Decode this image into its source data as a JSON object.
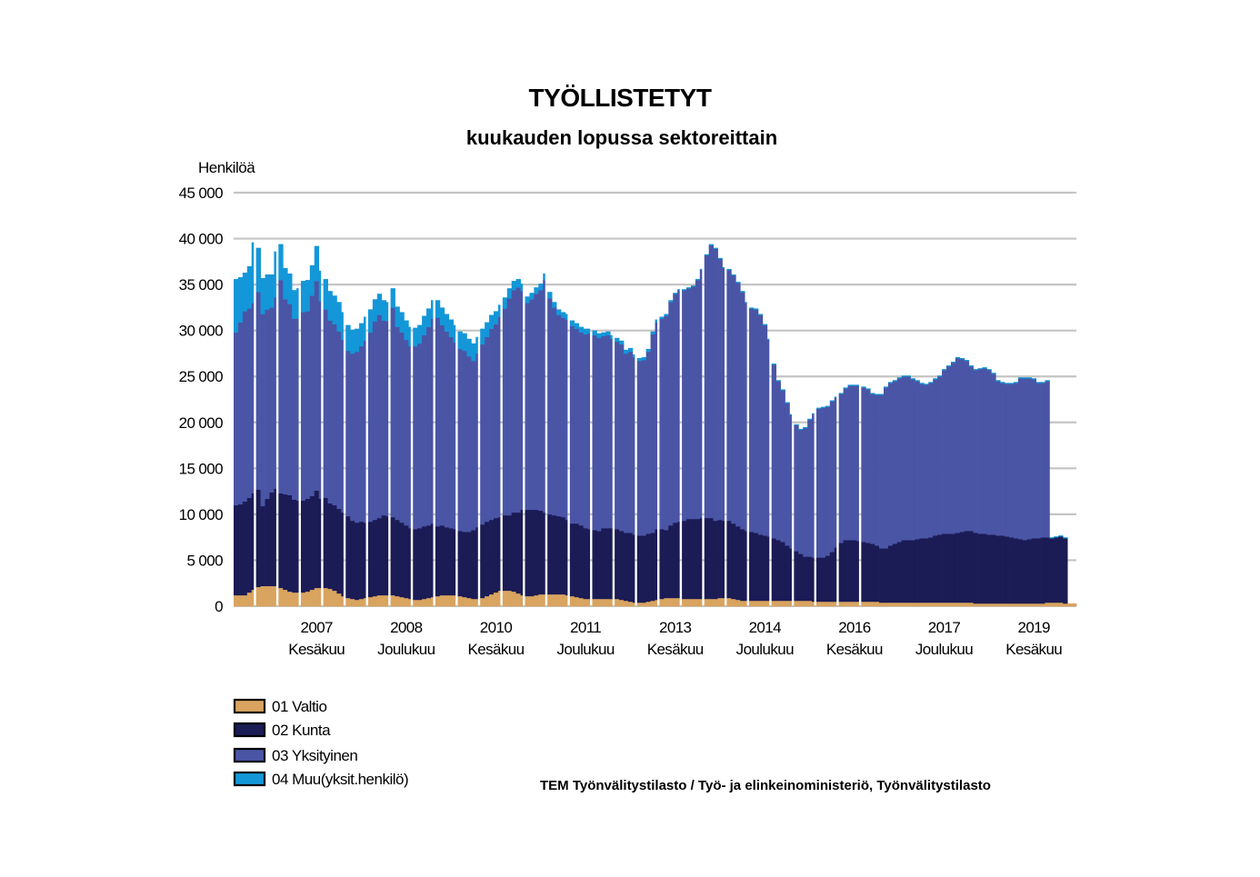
{
  "chart_data": {
    "type": "bar",
    "stacked": true,
    "title": "TYÖLLISTETYT",
    "subtitle": "kuukauden lopussa sektoreittain",
    "ylabel": "Henkilöä",
    "ylim": [
      0,
      45000
    ],
    "y_ticks": [
      "0",
      "5 000",
      "10 000",
      "15 000",
      "20 000",
      "25 000",
      "30 000",
      "35 000",
      "40 000",
      "45 000"
    ],
    "y_tick_values": [
      0,
      5000,
      10000,
      15000,
      20000,
      25000,
      30000,
      35000,
      40000,
      45000
    ],
    "grid": true,
    "x_ticks": [
      {
        "year": "2007",
        "month": "Kesäkuu",
        "index": 18
      },
      {
        "year": "2008",
        "month": "Joulukuu",
        "index": 38
      },
      {
        "year": "2010",
        "month": "Kesäkuu",
        "index": 58
      },
      {
        "year": "2011",
        "month": "Joulukuu",
        "index": 78
      },
      {
        "year": "2013",
        "month": "Kesäkuu",
        "index": 98
      },
      {
        "year": "2014",
        "month": "Joulukuu",
        "index": 118
      },
      {
        "year": "2016",
        "month": "Kesäkuu",
        "index": 138
      },
      {
        "year": "2017",
        "month": "Joulukuu",
        "index": 158
      },
      {
        "year": "2019",
        "month": "Kesäkuu",
        "index": 178
      }
    ],
    "gap_after_indices": [
      4,
      9,
      14,
      19,
      24,
      29,
      34,
      39,
      44,
      49,
      54,
      59,
      64,
      69,
      74,
      79,
      84,
      89,
      94,
      99,
      104,
      109,
      114,
      119,
      124,
      129,
      134,
      139
    ],
    "legend_position": "bottom-left",
    "series": [
      {
        "name": "01 Valtio",
        "color": "#d9a45f",
        "values": [
          1200,
          1200,
          1200,
          1500,
          1800,
          2100,
          2200,
          2200,
          2200,
          2200,
          2000,
          1800,
          1600,
          1500,
          1500,
          1500,
          1600,
          1800,
          2000,
          2000,
          2000,
          1900,
          1700,
          1400,
          1100,
          900,
          800,
          700,
          800,
          900,
          1000,
          1100,
          1200,
          1200,
          1200,
          1200,
          1100,
          1000,
          900,
          800,
          700,
          700,
          800,
          900,
          1000,
          1100,
          1200,
          1200,
          1200,
          1200,
          1100,
          1000,
          900,
          800,
          800,
          900,
          1100,
          1300,
          1500,
          1700,
          1700,
          1700,
          1600,
          1400,
          1200,
          1100,
          1100,
          1200,
          1300,
          1300,
          1300,
          1300,
          1300,
          1300,
          1200,
          1100,
          1000,
          900,
          800,
          800,
          800,
          800,
          800,
          800,
          800,
          800,
          700,
          600,
          500,
          400,
          400,
          400,
          500,
          600,
          700,
          800,
          900,
          900,
          900,
          900,
          800,
          800,
          800,
          800,
          800,
          800,
          800,
          800,
          900,
          900,
          900,
          800,
          700,
          600,
          600,
          600,
          600,
          600,
          600,
          600,
          600,
          600,
          600,
          600,
          600,
          600,
          600,
          600,
          600,
          500,
          500,
          500,
          500,
          500,
          500,
          500,
          500,
          500,
          500,
          500,
          500,
          500,
          500,
          500,
          400,
          400,
          400,
          400,
          400,
          400,
          400,
          400,
          400,
          400,
          400,
          400,
          400,
          400,
          400,
          400,
          400,
          400,
          400,
          400,
          400,
          300,
          300,
          300,
          300,
          300,
          300,
          300,
          300,
          300,
          300,
          300,
          300,
          300,
          300,
          300,
          300,
          400,
          400,
          400,
          400,
          300,
          300,
          300
        ]
      },
      {
        "name": "02 Kunta",
        "color": "#1b1b55",
        "values": [
          9800,
          9900,
          10200,
          10300,
          10500,
          10600,
          8700,
          9500,
          10200,
          10600,
          10300,
          10400,
          10500,
          10100,
          10000,
          10000,
          10100,
          10200,
          10600,
          9700,
          9800,
          9300,
          9300,
          9200,
          9100,
          8900,
          8500,
          8400,
          8400,
          8200,
          8200,
          8300,
          8400,
          8700,
          8600,
          8500,
          8300,
          8100,
          7900,
          7700,
          7700,
          7800,
          7900,
          7900,
          8000,
          7600,
          7600,
          7400,
          7300,
          7200,
          7100,
          7100,
          7200,
          7500,
          7800,
          8000,
          8100,
          8100,
          8100,
          8000,
          8200,
          8200,
          8600,
          8800,
          9300,
          9400,
          9400,
          9300,
          9100,
          8900,
          8700,
          8600,
          8500,
          8400,
          8200,
          7900,
          8000,
          7900,
          7700,
          7600,
          7500,
          7400,
          7700,
          7700,
          7700,
          7600,
          7500,
          7400,
          7500,
          7400,
          7300,
          7300,
          7400,
          7400,
          7700,
          7600,
          7400,
          7900,
          8200,
          8300,
          8500,
          8700,
          8700,
          8700,
          8800,
          8800,
          8800,
          8500,
          8500,
          8400,
          8400,
          8200,
          8000,
          7800,
          7600,
          7500,
          7400,
          7200,
          7100,
          7000,
          6800,
          6600,
          6400,
          6000,
          5700,
          5400,
          5100,
          4800,
          4800,
          4800,
          4800,
          4800,
          5000,
          5400,
          5900,
          6400,
          6700,
          6700,
          6700,
          6600,
          6500,
          6400,
          6300,
          6100,
          5900,
          5900,
          6200,
          6400,
          6600,
          6800,
          6800,
          6800,
          6900,
          7000,
          7000,
          7100,
          7300,
          7400,
          7500,
          7500,
          7500,
          7600,
          7700,
          7800,
          7800,
          7700,
          7600,
          7600,
          7500,
          7500,
          7400,
          7400,
          7300,
          7200,
          7100,
          7000,
          6900,
          7000,
          7100,
          7100,
          7200,
          7100,
          7000,
          7100,
          7200,
          7100
        ]
      },
      {
        "name": "03 Yksityinen",
        "color": "#4a55a6",
        "values": [
          18800,
          19800,
          20700,
          20600,
          20700,
          21500,
          20900,
          20600,
          20100,
          20800,
          23200,
          21200,
          20800,
          19700,
          19800,
          20500,
          20400,
          21800,
          22800,
          21500,
          20500,
          19900,
          19700,
          19300,
          18800,
          18000,
          18200,
          18600,
          19100,
          19800,
          20600,
          21600,
          22100,
          21200,
          21200,
          22800,
          21000,
          20700,
          20200,
          19800,
          19900,
          20100,
          20800,
          21600,
          22300,
          22700,
          21800,
          21300,
          20800,
          20300,
          19800,
          19700,
          19100,
          18400,
          18900,
          19600,
          20100,
          20800,
          21100,
          21800,
          22500,
          23600,
          24200,
          24500,
          23800,
          22500,
          22900,
          23500,
          24000,
          25300,
          23500,
          22600,
          21900,
          21700,
          21800,
          21500,
          21200,
          21000,
          21100,
          21300,
          21200,
          21000,
          20900,
          21000,
          20600,
          20400,
          20300,
          19500,
          19700,
          19300,
          19000,
          19100,
          19800,
          21600,
          22500,
          22900,
          23300,
          24300,
          24900,
          25200,
          25100,
          25100,
          25300,
          26000,
          27000,
          28600,
          29700,
          29600,
          28400,
          27500,
          27300,
          27000,
          26500,
          25800,
          24800,
          24300,
          24300,
          23900,
          22900,
          21400,
          18900,
          17300,
          16500,
          15500,
          14500,
          13700,
          13500,
          14000,
          14900,
          15600,
          16200,
          16300,
          16200,
          16400,
          16300,
          16200,
          16500,
          16800,
          16800,
          16900,
          16800,
          16700,
          16300,
          16400,
          16700,
          17500,
          17700,
          17700,
          17800,
          17800,
          17800,
          17500,
          17200,
          16800,
          16700,
          16800,
          17000,
          17200,
          17800,
          18200,
          18600,
          19000,
          18800,
          18500,
          17900,
          17700,
          17900,
          18000,
          17900,
          17500,
          16800,
          16600,
          16600,
          16700,
          16900,
          17500,
          17600,
          17500,
          17300,
          16900,
          16800,
          17000
        ]
      },
      {
        "name": "04 Muu(yksit.henkilö)",
        "color": "#1497d8",
        "values": [
          5800,
          4900,
          4200,
          4600,
          6600,
          4800,
          3900,
          3800,
          3600,
          5000,
          3900,
          3400,
          3300,
          3100,
          3300,
          3400,
          3400,
          3300,
          3800,
          3300,
          3300,
          3200,
          3100,
          3200,
          3000,
          2800,
          2600,
          2500,
          2500,
          2600,
          2500,
          2400,
          2300,
          2200,
          2100,
          2100,
          2200,
          2200,
          2100,
          2100,
          2000,
          2000,
          2100,
          2000,
          2000,
          1900,
          1900,
          1900,
          1900,
          1900,
          1900,
          1900,
          1900,
          1900,
          1800,
          1700,
          1600,
          1500,
          1400,
          1300,
          1200,
          1100,
          1000,
          900,
          800,
          700,
          700,
          700,
          700,
          700,
          700,
          600,
          600,
          600,
          600,
          600,
          600,
          600,
          600,
          500,
          500,
          500,
          400,
          400,
          400,
          400,
          400,
          400,
          400,
          300,
          300,
          300,
          300,
          300,
          300,
          200,
          200,
          200,
          100,
          100,
          100,
          100,
          100,
          100,
          100,
          100,
          100,
          100,
          100,
          100,
          100,
          100,
          100,
          100,
          100,
          100,
          100,
          100,
          100,
          100,
          100,
          100,
          100,
          100,
          100,
          100,
          100,
          100,
          100,
          100,
          100,
          100,
          100,
          100,
          100,
          100,
          100,
          100,
          100,
          100,
          100,
          100,
          100,
          100,
          100,
          100,
          100,
          100,
          100,
          100,
          100,
          100,
          100,
          100,
          100,
          100,
          100,
          100,
          100,
          100,
          100,
          100,
          100,
          100,
          100,
          100,
          100,
          100,
          100,
          100,
          100,
          100,
          100,
          100,
          100,
          100,
          100,
          100,
          100,
          100,
          100,
          100,
          100,
          100,
          100,
          100
        ]
      }
    ],
    "source": "TEM Työnvälitystilasto / Työ- ja elinkeinoministeriö, Työnvälitystilasto"
  }
}
